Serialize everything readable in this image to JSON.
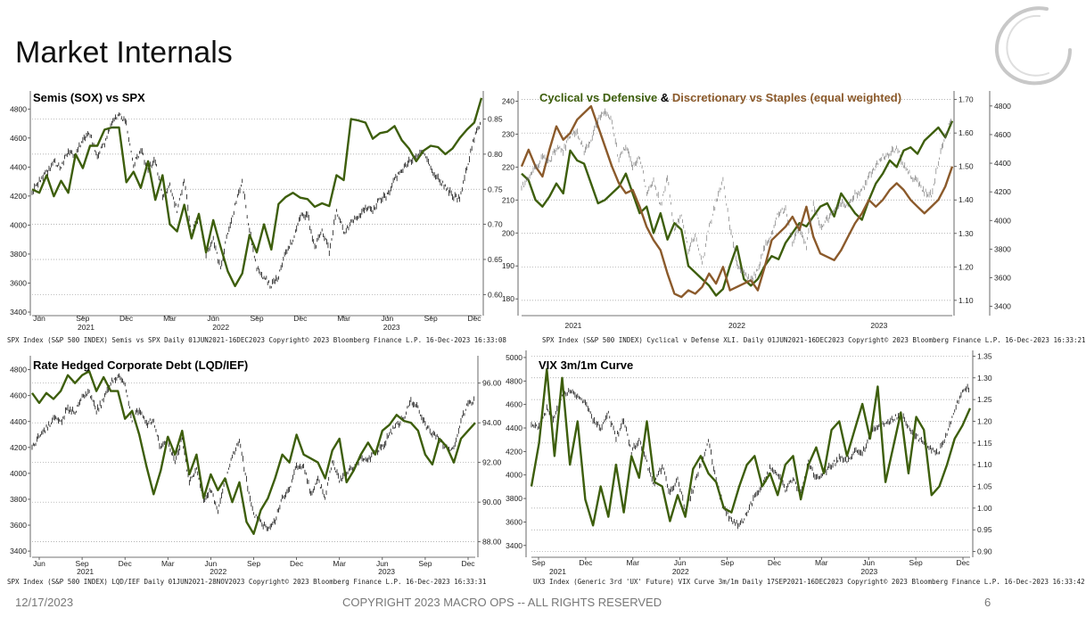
{
  "slide": {
    "title": "Market Internals",
    "footer_date": "12/17/2023",
    "footer_copyright": "COPYRIGHT 2023 MACRO OPS -- ALL RIGHTS RESERVED",
    "page_number": "6"
  },
  "colors": {
    "green": "#3d5e0c",
    "brown": "#8b5a2b",
    "black": "#111111",
    "grid": "#9a9a9a"
  },
  "chart_data": [
    {
      "id": "c1",
      "type": "line",
      "title": "Semis (SOX) vs SPX",
      "left_axis": {
        "range": [
          3400,
          4900
        ],
        "ticks": [
          3400,
          3600,
          3800,
          4000,
          4200,
          4400,
          4600,
          4800
        ]
      },
      "right_axis": {
        "range": [
          0.575,
          0.885
        ],
        "ticks": [
          0.6,
          0.65,
          0.7,
          0.75,
          0.8,
          0.85
        ]
      },
      "months": [
        "Jun",
        "Sep",
        "Dec",
        "Mar",
        "Jun",
        "Sep",
        "Dec",
        "Mar",
        "Jun",
        "Sep",
        "Dec"
      ],
      "years": [
        "2021",
        "2022",
        "2023"
      ],
      "series": [
        {
          "name": "SPX",
          "axis": "left",
          "style": "black-bars",
          "values": [
            4230,
            4300,
            4360,
            4440,
            4400,
            4510,
            4480,
            4600,
            4620,
            4480,
            4560,
            4700,
            4760,
            4700,
            4420,
            4520,
            4380,
            4450,
            4200,
            4280,
            4100,
            4300,
            3940,
            4050,
            3800,
            3900,
            3700,
            3950,
            4130,
            4290,
            3960,
            3700,
            3640,
            3580,
            3650,
            3820,
            3900,
            4060,
            4070,
            3850,
            3960,
            3820,
            4110,
            3950,
            4010,
            4060,
            4120,
            4100,
            4180,
            4200,
            4310,
            4380,
            4440,
            4470,
            4510,
            4380,
            4320,
            4270,
            4200,
            4180,
            4400,
            4600,
            4720
          ]
        },
        {
          "name": "Semis vs SPX",
          "axis": "right",
          "style": "green-line",
          "values": [
            0.75,
            0.745,
            0.77,
            0.74,
            0.762,
            0.745,
            0.8,
            0.78,
            0.812,
            0.812,
            0.835,
            0.838,
            0.838,
            0.76,
            0.775,
            0.752,
            0.79,
            0.735,
            0.77,
            0.7,
            0.69,
            0.728,
            0.68,
            0.715,
            0.66,
            0.706,
            0.668,
            0.633,
            0.612,
            0.63,
            0.685,
            0.66,
            0.7,
            0.664,
            0.729,
            0.739,
            0.745,
            0.738,
            0.736,
            0.725,
            0.73,
            0.726,
            0.77,
            0.763,
            0.85,
            0.848,
            0.845,
            0.822,
            0.83,
            0.832,
            0.84,
            0.82,
            0.808,
            0.79,
            0.805,
            0.812,
            0.81,
            0.8,
            0.808,
            0.823,
            0.835,
            0.845,
            0.88
          ]
        }
      ],
      "source": "SPX Index (S&P 500 INDEX) Semis vs SPX  Daily 01JUN2021-16DEC2023   Copyright© 2023 Bloomberg Finance L.P.     16-Dec-2023 16:33:08"
    },
    {
      "id": "c2",
      "type": "line",
      "title_parts": [
        "Cyclical vs Defensive",
        " & ",
        "Discretionary vs Staples (equal weighted)"
      ],
      "left_axis": {
        "range": [
          176,
          242
        ],
        "ticks": [
          180,
          190,
          200,
          210,
          220,
          230,
          240
        ]
      },
      "right_axis": {
        "range": [
          1.065,
          1.715
        ],
        "ticks": [
          1.1,
          1.2,
          1.3,
          1.4,
          1.5,
          1.6,
          1.7
        ]
      },
      "far_right_axis": {
        "range": [
          3360,
          4880
        ],
        "ticks": [
          3400,
          3600,
          3800,
          4000,
          4200,
          4400,
          4600,
          4800
        ]
      },
      "years": [
        "2021",
        "2022",
        "2023"
      ],
      "series": [
        {
          "name": "Cyclical vs Defensive",
          "axis": "left",
          "style": "green-line",
          "values": [
            218,
            216,
            210,
            208,
            211,
            215,
            212,
            225,
            222,
            221,
            215,
            209,
            210,
            212,
            214,
            218,
            212,
            206,
            208,
            200,
            206,
            198,
            203,
            201,
            190,
            188,
            186,
            184,
            181,
            183,
            190,
            196,
            186,
            184,
            186,
            190,
            193,
            192,
            197,
            200,
            203,
            202,
            205,
            208,
            209,
            205,
            212,
            209,
            206,
            204,
            210,
            215,
            218,
            222,
            220,
            225,
            226,
            224,
            228,
            230,
            232,
            229,
            234
          ]
        },
        {
          "name": "Discretionary vs Staples",
          "axis": "right",
          "style": "brown-line",
          "values": [
            1.5,
            1.55,
            1.5,
            1.47,
            1.55,
            1.62,
            1.58,
            1.6,
            1.64,
            1.66,
            1.68,
            1.62,
            1.56,
            1.5,
            1.45,
            1.42,
            1.43,
            1.38,
            1.32,
            1.28,
            1.25,
            1.18,
            1.12,
            1.11,
            1.13,
            1.12,
            1.14,
            1.18,
            1.15,
            1.2,
            1.13,
            1.14,
            1.15,
            1.16,
            1.13,
            1.2,
            1.28,
            1.3,
            1.32,
            1.35,
            1.31,
            1.38,
            1.29,
            1.24,
            1.23,
            1.22,
            1.25,
            1.29,
            1.33,
            1.36,
            1.4,
            1.38,
            1.4,
            1.43,
            1.45,
            1.43,
            1.4,
            1.38,
            1.36,
            1.38,
            1.4,
            1.44,
            1.5
          ]
        },
        {
          "name": "SPX",
          "axis": "far_right",
          "style": "grey-bars",
          "values": [
            4230,
            4300,
            4360,
            4440,
            4400,
            4510,
            4480,
            4600,
            4620,
            4480,
            4560,
            4700,
            4760,
            4700,
            4420,
            4520,
            4380,
            4450,
            4200,
            4280,
            4100,
            4300,
            3940,
            4050,
            3800,
            3900,
            3700,
            3950,
            4130,
            4290,
            3960,
            3700,
            3640,
            3580,
            3650,
            3820,
            3900,
            4060,
            4070,
            3850,
            3960,
            3820,
            4110,
            3950,
            4010,
            4060,
            4120,
            4100,
            4180,
            4200,
            4310,
            4380,
            4440,
            4470,
            4510,
            4380,
            4320,
            4270,
            4200,
            4180,
            4400,
            4600,
            4720
          ]
        }
      ],
      "source": "SPX Index (S&P 500 INDEX) Cyclical v Defense XLI.  Daily 01JUN2021-16DEC2023               Copyright© 2023 Bloomberg Finance L.P.             16-Dec-2023 16:33:21"
    },
    {
      "id": "c3",
      "type": "line",
      "title": "Rate Hedged Corporate Debt (LQD/IEF)",
      "left_axis": {
        "range": [
          3380,
          4880
        ],
        "ticks": [
          3400,
          3600,
          3800,
          4000,
          4200,
          4400,
          4600,
          4800
        ]
      },
      "right_axis": {
        "range": [
          87.4,
          97.2
        ],
        "ticks": [
          88.0,
          90.0,
          92.0,
          94.0,
          96.0
        ]
      },
      "months": [
        "Jun",
        "Sep",
        "Dec",
        "Mar",
        "Jun",
        "Sep",
        "Dec",
        "Mar",
        "Jun",
        "Sep",
        "Dec"
      ],
      "years": [
        "2021",
        "2022",
        "2023"
      ],
      "series": [
        {
          "name": "SPX",
          "axis": "left",
          "style": "black-bars",
          "values": [
            4200,
            4280,
            4350,
            4420,
            4400,
            4500,
            4470,
            4580,
            4620,
            4480,
            4560,
            4700,
            4750,
            4680,
            4420,
            4500,
            4370,
            4420,
            4180,
            4260,
            4080,
            4280,
            3920,
            4040,
            3780,
            3880,
            3700,
            3930,
            4120,
            4270,
            3940,
            3680,
            3620,
            3570,
            3640,
            3800,
            3880,
            4050,
            4060,
            3840,
            3950,
            3820,
            4100,
            3950,
            4000,
            4050,
            4110,
            4090,
            4170,
            4200,
            4300,
            4370,
            4430,
            4560,
            4500,
            4370,
            4310,
            4260,
            4190,
            4180,
            4400,
            4550,
            4560
          ]
        },
        {
          "name": "LQD/IEF",
          "axis": "right",
          "style": "green-line",
          "values": [
            95.5,
            95.0,
            95.5,
            95.2,
            95.6,
            96.4,
            96.0,
            96.4,
            96.6,
            95.6,
            96.3,
            95.6,
            95.6,
            94.2,
            94.6,
            93.4,
            91.8,
            90.4,
            91.6,
            93.3,
            92.4,
            93.6,
            91.4,
            92.4,
            90.2,
            91.4,
            90.6,
            91.2,
            90.0,
            91.0,
            89.0,
            88.4,
            89.6,
            90.2,
            91.2,
            92.4,
            92.0,
            93.4,
            92.4,
            92.2,
            92.0,
            91.2,
            92.6,
            93.2,
            91.0,
            91.6,
            92.4,
            93.0,
            92.4,
            93.6,
            93.9,
            94.4,
            94.1,
            94.0,
            93.6,
            92.4,
            91.9,
            93.2,
            92.8,
            92.0,
            93.2,
            93.6,
            94.0
          ]
        }
      ],
      "source": "SPX Index (S&P 500 INDEX) LQD/IEF  Daily 01JUN2021-28NOV2023     Copyright© 2023 Bloomberg Finance L.P.                    16-Dec-2023 16:33:31"
    },
    {
      "id": "c4",
      "type": "line",
      "title": "VIX 3m/1m Curve",
      "left_axis": {
        "range": [
          3330,
          5030
        ],
        "ticks": [
          3400,
          3600,
          3800,
          4000,
          4200,
          4400,
          4600,
          4800,
          5000
        ]
      },
      "right_axis": {
        "range": [
          0.895,
          1.355
        ],
        "ticks": [
          0.9,
          0.95,
          1.0,
          1.05,
          1.1,
          1.15,
          1.2,
          1.25,
          1.3,
          1.35
        ]
      },
      "months": [
        "Sep",
        "Dec",
        "Mar",
        "Jun",
        "Sep",
        "Dec",
        "Mar",
        "Jun",
        "Sep",
        "Dec"
      ],
      "years": [
        "2021",
        "2022",
        "2023"
      ],
      "series": [
        {
          "name": "SPX",
          "axis": "left",
          "style": "black-bars",
          "values": [
            4420,
            4400,
            4560,
            4480,
            4690,
            4720,
            4680,
            4600,
            4480,
            4400,
            4520,
            4320,
            4460,
            4200,
            4300,
            4100,
            3920,
            4080,
            3840,
            3960,
            3700,
            3880,
            4100,
            4280,
            3960,
            3710,
            3620,
            3580,
            3660,
            3820,
            3900,
            4050,
            4020,
            3880,
            3960,
            3850,
            4100,
            3980,
            4020,
            4080,
            4140,
            4120,
            4200,
            4180,
            4350,
            4400,
            4440,
            4480,
            4520,
            4400,
            4330,
            4280,
            4210,
            4200,
            4360,
            4550,
            4720,
            4740
          ]
        },
        {
          "name": "VIX 3m/1m",
          "axis": "right",
          "style": "green-line",
          "values": [
            1.05,
            1.15,
            1.32,
            1.12,
            1.3,
            1.1,
            1.2,
            1.02,
            0.96,
            1.05,
            0.98,
            1.1,
            0.99,
            1.12,
            1.07,
            1.2,
            1.06,
            1.05,
            0.97,
            1.03,
            0.98,
            1.09,
            1.12,
            1.08,
            1.06,
            1.0,
            0.99,
            1.05,
            1.1,
            1.12,
            1.05,
            1.08,
            1.03,
            1.1,
            1.12,
            1.02,
            1.1,
            1.14,
            1.08,
            1.18,
            1.2,
            1.12,
            1.18,
            1.24,
            1.16,
            1.28,
            1.06,
            1.14,
            1.22,
            1.08,
            1.21,
            1.18,
            1.03,
            1.05,
            1.1,
            1.16,
            1.19,
            1.23
          ]
        }
      ],
      "source": "UX3 Index (Generic 3rd 'UX' Future) VIX Curve 3m/1m  Daily 17SEP2021-16DEC2023           Copyright© 2023 Bloomberg Finance L.P.          16-Dec-2023 16:33:42"
    }
  ]
}
